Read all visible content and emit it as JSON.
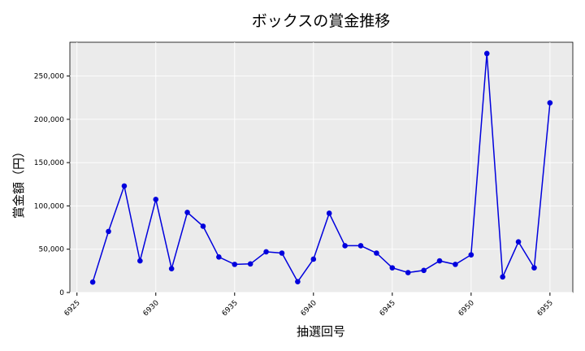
{
  "chart_data": {
    "type": "line",
    "title": "ボックスの賞金推移",
    "xlabel": "抽選回号",
    "ylabel": "賞金額（円）",
    "x": [
      6926,
      6927,
      6928,
      6929,
      6930,
      6931,
      6932,
      6933,
      6934,
      6935,
      6936,
      6937,
      6938,
      6939,
      6940,
      6941,
      6942,
      6943,
      6944,
      6945,
      6946,
      6947,
      6948,
      6949,
      6950,
      6951,
      6952,
      6953,
      6954,
      6955
    ],
    "series": [
      {
        "values": [
          12000,
          70500,
          123000,
          36500,
          107500,
          27500,
          92500,
          76500,
          41000,
          32500,
          33000,
          47000,
          45500,
          12500,
          38500,
          91500,
          54000,
          54000,
          45500,
          28500,
          23000,
          25500,
          36500,
          32500,
          43500,
          276000,
          18000,
          58500,
          28500,
          219000
        ],
        "color": "#0000dd"
      }
    ],
    "xlim": [
      6924.55,
      6956.45
    ],
    "ylim": [
      0,
      289000
    ],
    "xticks": [
      "6925",
      "6930",
      "6935",
      "6940",
      "6945",
      "6950",
      "6955"
    ],
    "yticks": [
      "0",
      "50,000",
      "100,000",
      "150,000",
      "200,000",
      "250,000"
    ],
    "grid": true,
    "background": "#ebebeb"
  }
}
